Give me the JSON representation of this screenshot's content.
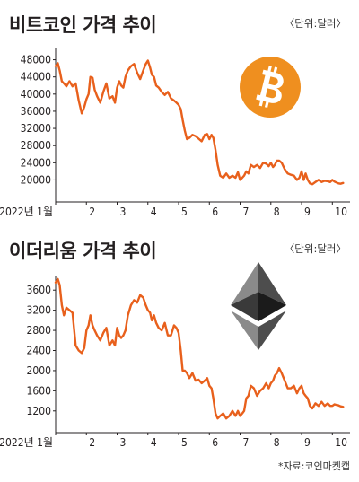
{
  "charts": [
    {
      "id": "btc",
      "title": "비트코인 가격 추이",
      "unit": "〈단위:달러〉",
      "icon": "bitcoin-icon",
      "icon_color": "#ef8f1f",
      "line_color": "#e8601c"
    },
    {
      "id": "eth",
      "title": "이더리움 가격 추이",
      "unit": "〈단위:달러〉",
      "icon": "ethereum-icon",
      "line_color": "#e8601c"
    }
  ],
  "source": "*자료:코인마켓캡",
  "chart_data": [
    {
      "type": "line",
      "title": "비트코인 가격 추이",
      "unit": "〈단위:달러〉",
      "x_ticks": [
        "2022년 1월",
        "2",
        "3",
        "4",
        "5",
        "6",
        "7",
        "8",
        "9",
        "10"
      ],
      "y_ticks": [
        20000,
        24000,
        28000,
        32000,
        36000,
        40000,
        44000,
        48000
      ],
      "ylim": [
        18000,
        50000
      ],
      "xlim": [
        1,
        10.4
      ],
      "x": [
        1.0,
        1.07,
        1.13,
        1.2,
        1.27,
        1.35,
        1.45,
        1.55,
        1.65,
        1.75,
        1.85,
        1.93,
        2.0,
        2.07,
        2.13,
        2.2,
        2.27,
        2.35,
        2.45,
        2.55,
        2.65,
        2.75,
        2.85,
        2.93,
        3.0,
        3.07,
        3.13,
        3.2,
        3.27,
        3.35,
        3.45,
        3.55,
        3.65,
        3.75,
        3.85,
        3.93,
        4.0,
        4.07,
        4.13,
        4.2,
        4.27,
        4.35,
        4.45,
        4.55,
        4.65,
        4.75,
        4.85,
        4.93,
        5.0,
        5.07,
        5.13,
        5.2,
        5.27,
        5.35,
        5.45,
        5.55,
        5.65,
        5.75,
        5.85,
        5.93,
        6.0,
        6.07,
        6.13,
        6.2,
        6.27,
        6.35,
        6.45,
        6.55,
        6.65,
        6.75,
        6.85,
        6.93,
        7.0,
        7.07,
        7.13,
        7.2,
        7.27,
        7.35,
        7.45,
        7.55,
        7.65,
        7.75,
        7.85,
        7.93,
        8.0,
        8.07,
        8.13,
        8.2,
        8.27,
        8.35,
        8.45,
        8.55,
        8.65,
        8.75,
        8.85,
        8.93,
        9.0,
        9.07,
        9.13,
        9.2,
        9.27,
        9.35,
        9.45,
        9.55,
        9.65,
        9.75,
        9.85,
        9.93,
        10.0,
        10.07,
        10.13,
        10.2,
        10.27,
        10.35
      ],
      "series": [
        {
          "values": [
            46500,
            47200,
            45500,
            43000,
            42500,
            41800,
            43000,
            41800,
            42500,
            38500,
            35500,
            37000,
            38800,
            40000,
            44000,
            43800,
            41000,
            39500,
            38000,
            40500,
            42500,
            39000,
            39500,
            38000,
            41500,
            43000,
            42000,
            41500,
            44000,
            45500,
            46500,
            47000,
            45000,
            43500,
            45500,
            47000,
            47800,
            46200,
            44500,
            44000,
            42000,
            41500,
            40500,
            39800,
            40500,
            39000,
            38500,
            38000,
            37500,
            36500,
            34000,
            31500,
            29500,
            29800,
            30500,
            30200,
            29600,
            29000,
            30500,
            30700,
            29500,
            30500,
            29800,
            27000,
            23500,
            21000,
            20500,
            21500,
            20500,
            21000,
            20500,
            21800,
            20000,
            20500,
            21000,
            22000,
            21500,
            23500,
            23000,
            23500,
            22800,
            24000,
            23800,
            23200,
            24000,
            23000,
            23500,
            24500,
            24500,
            24000,
            22500,
            21500,
            21200,
            21000,
            20000,
            20500,
            22000,
            20000,
            21500,
            20000,
            19200,
            19000,
            19500,
            20000,
            19500,
            19800,
            19700,
            19500,
            20000,
            19600,
            19400,
            19200,
            19100,
            19300
          ]
        }
      ]
    },
    {
      "type": "line",
      "title": "이더리움 가격 추이",
      "unit": "〈단위:달러〉",
      "x_ticks": [
        "2022년 1월",
        "2",
        "3",
        "4",
        "5",
        "6",
        "7",
        "8",
        "9",
        "10"
      ],
      "y_ticks": [
        1200,
        1600,
        2000,
        2400,
        2800,
        3200,
        3600
      ],
      "ylim": [
        1000,
        3800
      ],
      "xlim": [
        1,
        10.4
      ],
      "x": [
        1.0,
        1.07,
        1.13,
        1.2,
        1.27,
        1.35,
        1.45,
        1.55,
        1.65,
        1.75,
        1.85,
        1.93,
        2.0,
        2.07,
        2.13,
        2.2,
        2.27,
        2.35,
        2.45,
        2.55,
        2.65,
        2.75,
        2.85,
        2.93,
        3.0,
        3.07,
        3.13,
        3.2,
        3.27,
        3.35,
        3.45,
        3.55,
        3.65,
        3.75,
        3.85,
        3.93,
        4.0,
        4.07,
        4.13,
        4.2,
        4.27,
        4.35,
        4.45,
        4.55,
        4.65,
        4.75,
        4.85,
        4.93,
        5.0,
        5.07,
        5.13,
        5.2,
        5.27,
        5.35,
        5.45,
        5.55,
        5.65,
        5.75,
        5.85,
        5.93,
        6.0,
        6.07,
        6.13,
        6.2,
        6.27,
        6.35,
        6.45,
        6.55,
        6.65,
        6.75,
        6.85,
        6.93,
        7.0,
        7.07,
        7.13,
        7.2,
        7.27,
        7.35,
        7.45,
        7.55,
        7.65,
        7.75,
        7.85,
        7.93,
        8.0,
        8.07,
        8.13,
        8.2,
        8.27,
        8.35,
        8.45,
        8.55,
        8.65,
        8.75,
        8.85,
        8.93,
        9.0,
        9.07,
        9.13,
        9.2,
        9.27,
        9.35,
        9.45,
        9.55,
        9.65,
        9.75,
        9.85,
        9.93,
        10.0,
        10.07,
        10.13,
        10.2,
        10.27,
        10.35
      ],
      "series": [
        {
          "values": [
            3750,
            3820,
            3700,
            3300,
            3100,
            3250,
            3200,
            3150,
            2500,
            2400,
            2350,
            2450,
            2800,
            2900,
            3100,
            2900,
            2800,
            2700,
            2600,
            2750,
            2850,
            2500,
            2600,
            2500,
            2850,
            2700,
            2650,
            2700,
            2800,
            3100,
            3300,
            3400,
            3350,
            3500,
            3450,
            3300,
            3200,
            3150,
            3000,
            3100,
            2950,
            2850,
            2800,
            2950,
            2700,
            2700,
            2900,
            2850,
            2750,
            2400,
            2000,
            2000,
            1950,
            1850,
            1950,
            1800,
            1820,
            1750,
            1800,
            1850,
            1700,
            1650,
            1450,
            1150,
            1050,
            1100,
            1150,
            1050,
            1100,
            1200,
            1100,
            1200,
            1100,
            1150,
            1200,
            1450,
            1500,
            1700,
            1650,
            1500,
            1600,
            1650,
            1750,
            1650,
            1750,
            1800,
            1900,
            1950,
            2050,
            1950,
            1800,
            1650,
            1650,
            1700,
            1550,
            1650,
            1700,
            1550,
            1500,
            1450,
            1300,
            1250,
            1350,
            1300,
            1380,
            1300,
            1350,
            1300,
            1300,
            1330,
            1320,
            1310,
            1290,
            1280
          ]
        }
      ]
    }
  ]
}
